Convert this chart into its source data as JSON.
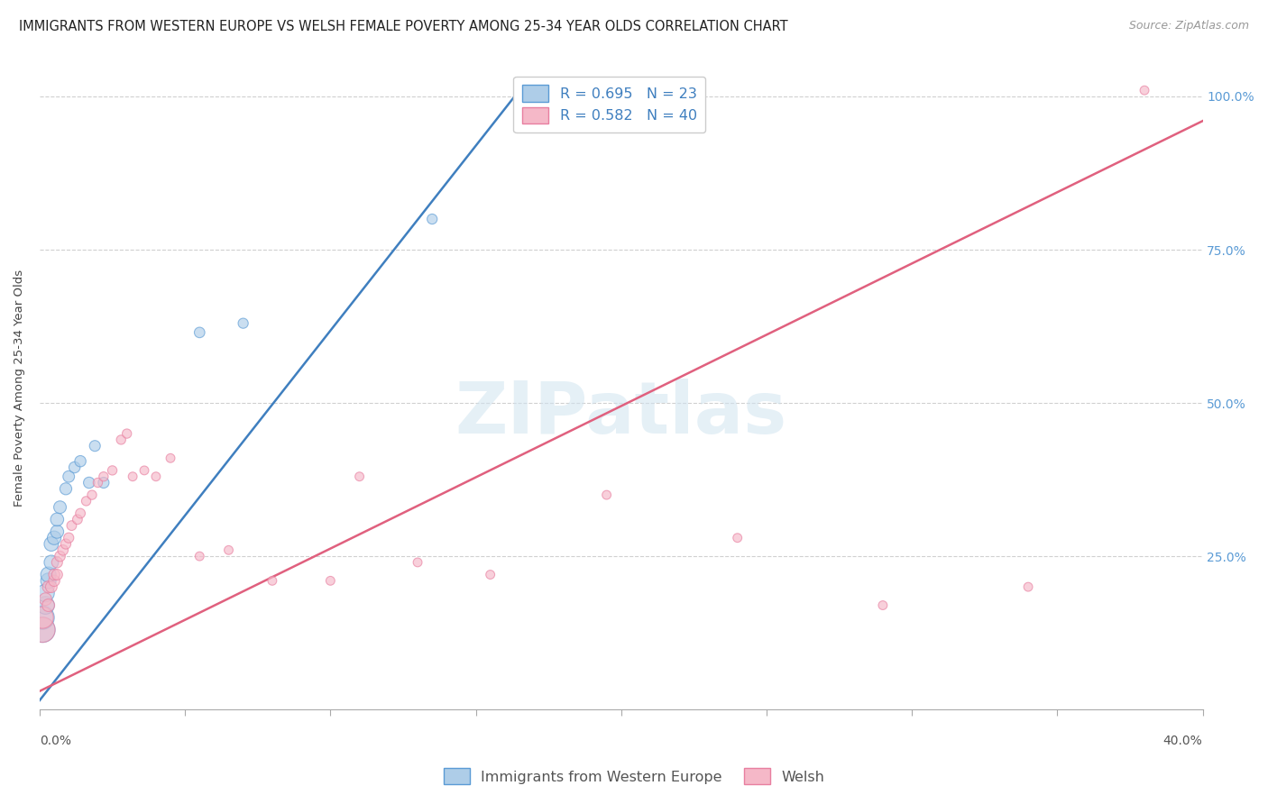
{
  "title": "IMMIGRANTS FROM WESTERN EUROPE VS WELSH FEMALE POVERTY AMONG 25-34 YEAR OLDS CORRELATION CHART",
  "source": "Source: ZipAtlas.com",
  "ylabel": "Female Poverty Among 25-34 Year Olds",
  "ylabel_right_ticks": [
    "25.0%",
    "50.0%",
    "75.0%",
    "100.0%"
  ],
  "ylabel_right_vals": [
    0.25,
    0.5,
    0.75,
    1.0
  ],
  "xmin": 0.0,
  "xmax": 0.4,
  "ymin": 0.0,
  "ymax": 1.05,
  "watermark_text": "ZIPatlas",
  "legend_label_blue": "R = 0.695   N = 23",
  "legend_label_pink": "R = 0.582   N = 40",
  "legend_label_blue_series": "Immigrants from Western Europe",
  "legend_label_pink_series": "Welsh",
  "blue_face_color": "#aecde8",
  "pink_face_color": "#f5b8c8",
  "blue_edge_color": "#5b9bd5",
  "pink_edge_color": "#e87fa0",
  "blue_line_color": "#3f7fbf",
  "pink_line_color": "#e0607e",
  "blue_scatter_x": [
    0.001,
    0.001,
    0.002,
    0.002,
    0.003,
    0.003,
    0.004,
    0.004,
    0.005,
    0.006,
    0.006,
    0.007,
    0.009,
    0.01,
    0.012,
    0.014,
    0.017,
    0.019,
    0.022,
    0.055,
    0.07,
    0.135,
    0.205
  ],
  "blue_scatter_y": [
    0.13,
    0.15,
    0.17,
    0.19,
    0.21,
    0.22,
    0.24,
    0.27,
    0.28,
    0.29,
    0.31,
    0.33,
    0.36,
    0.38,
    0.395,
    0.405,
    0.37,
    0.43,
    0.37,
    0.615,
    0.63,
    0.8,
    0.97
  ],
  "blue_scatter_sizes": [
    400,
    350,
    200,
    200,
    150,
    150,
    130,
    130,
    120,
    110,
    110,
    100,
    90,
    85,
    80,
    80,
    80,
    75,
    75,
    70,
    65,
    65,
    65
  ],
  "pink_scatter_x": [
    0.001,
    0.001,
    0.002,
    0.003,
    0.003,
    0.004,
    0.005,
    0.005,
    0.006,
    0.006,
    0.007,
    0.008,
    0.009,
    0.01,
    0.011,
    0.013,
    0.014,
    0.016,
    0.018,
    0.02,
    0.022,
    0.025,
    0.028,
    0.03,
    0.032,
    0.036,
    0.04,
    0.045,
    0.055,
    0.065,
    0.08,
    0.1,
    0.11,
    0.13,
    0.155,
    0.195,
    0.24,
    0.29,
    0.34,
    0.38
  ],
  "pink_scatter_y": [
    0.13,
    0.15,
    0.18,
    0.17,
    0.2,
    0.2,
    0.21,
    0.22,
    0.22,
    0.24,
    0.25,
    0.26,
    0.27,
    0.28,
    0.3,
    0.31,
    0.32,
    0.34,
    0.35,
    0.37,
    0.38,
    0.39,
    0.44,
    0.45,
    0.38,
    0.39,
    0.38,
    0.41,
    0.25,
    0.26,
    0.21,
    0.21,
    0.38,
    0.24,
    0.22,
    0.35,
    0.28,
    0.17,
    0.2,
    1.01
  ],
  "pink_scatter_sizes": [
    400,
    300,
    100,
    100,
    90,
    85,
    80,
    80,
    75,
    75,
    70,
    70,
    65,
    65,
    60,
    60,
    60,
    55,
    55,
    55,
    55,
    55,
    55,
    55,
    50,
    50,
    50,
    50,
    50,
    50,
    50,
    50,
    50,
    50,
    50,
    50,
    50,
    50,
    50,
    50
  ],
  "blue_trendline_x": [
    0.0,
    0.165
  ],
  "blue_trendline_y": [
    0.015,
    1.01
  ],
  "pink_trendline_x": [
    0.0,
    0.4
  ],
  "pink_trendline_y": [
    0.03,
    0.96
  ],
  "grid_color": "#d0d0d0",
  "background_color": "#ffffff",
  "title_fontsize": 10.5,
  "axis_label_fontsize": 9.5,
  "tick_fontsize": 10,
  "legend_fontsize": 11.5,
  "source_fontsize": 9
}
